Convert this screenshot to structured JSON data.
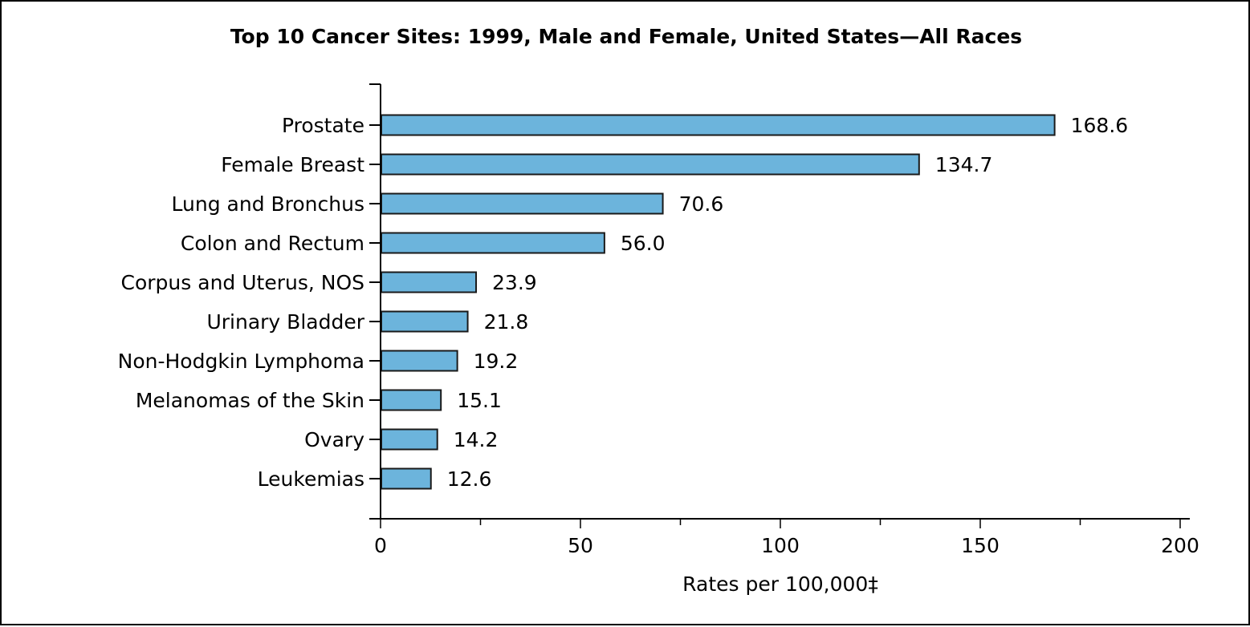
{
  "chart_data": {
    "type": "bar",
    "orientation": "horizontal",
    "title": "Top 10 Cancer Sites: 1999, Male and Female, United States—All Races",
    "xlabel": "Rates per 100,000‡",
    "ylabel": "",
    "categories": [
      "Prostate",
      "Female Breast",
      "Lung and Bronchus",
      "Colon and Rectum",
      "Corpus and Uterus, NOS",
      "Urinary Bladder",
      "Non-Hodgkin Lymphoma",
      "Melanomas of the Skin",
      "Ovary",
      "Leukemias"
    ],
    "values": [
      168.6,
      134.7,
      70.6,
      56.0,
      23.9,
      21.8,
      19.2,
      15.1,
      14.2,
      12.6
    ],
    "value_labels": [
      "168.6",
      "134.7",
      "70.6",
      "56.0",
      "23.9",
      "21.8",
      "19.2",
      "15.1",
      "14.2",
      "12.6"
    ],
    "xlim": [
      0,
      200
    ],
    "major_ticks": [
      "0",
      "50",
      "100",
      "150",
      "200"
    ],
    "grid": false,
    "legend": "none",
    "colors": {
      "bar_fill": "#6cb4dc",
      "bar_stroke": "#1a1a1a",
      "axis": "#000000",
      "text": "#000000"
    }
  }
}
